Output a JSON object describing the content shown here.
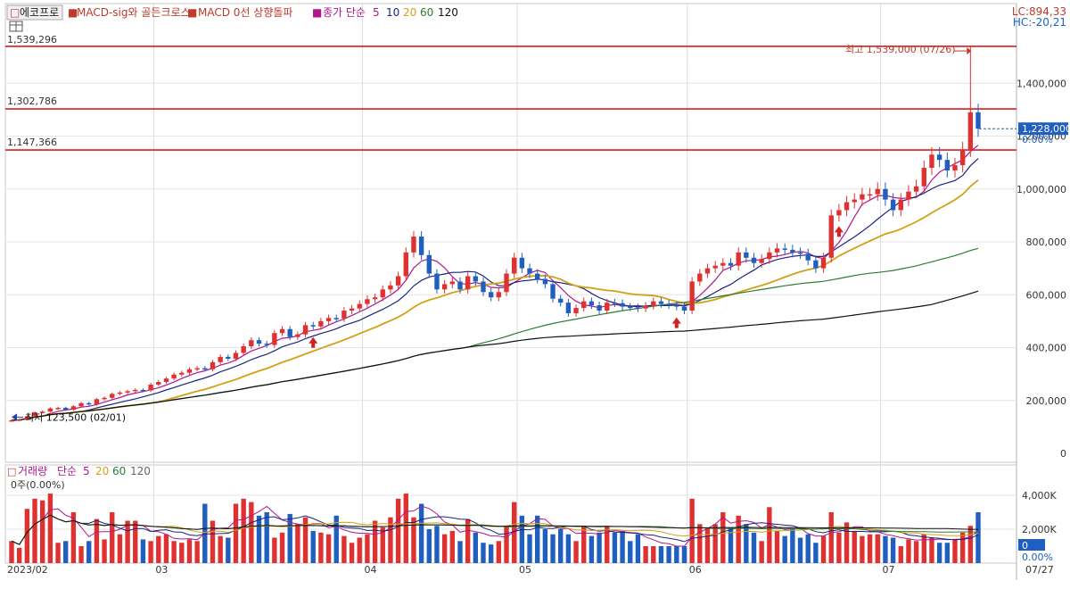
{
  "header": {
    "stock_name": "에코프로",
    "indicators": [
      {
        "label": "MACD-sig와 골든크로스",
        "color": "#c0392b"
      },
      {
        "label": "MACD 0선 상향돌파",
        "color": "#c0392b"
      }
    ],
    "ma_label": "종가 단순",
    "ma_periods": [
      {
        "label": "5",
        "color": "#b0178c"
      },
      {
        "label": "10",
        "color": "#1a237e"
      },
      {
        "label": "20",
        "color": "#d4a017"
      },
      {
        "label": "60",
        "color": "#2e7d32"
      },
      {
        "label": "120",
        "color": "#111111"
      }
    ]
  },
  "readouts": {
    "lc": "LC:894,33",
    "hc": "HC:-20,21"
  },
  "price_levels": [
    {
      "label": "1,539,296",
      "value": 1539296
    },
    {
      "label": "1,302,786",
      "value": 1302786
    },
    {
      "label": "1,147,366",
      "value": 1147366
    }
  ],
  "annotations": {
    "high": "최고 1,539,000 (07/26)",
    "low": "최저 123,500 (02/01)"
  },
  "current_price": {
    "label": "1,228,000",
    "value": 1228000,
    "pct": "0.00%"
  },
  "volume_header": {
    "label": "거래량",
    "ma_label": "단순",
    "zero_label": "0주(0.00%)",
    "current_label": "0",
    "pct": "0.00%"
  },
  "footer": {
    "start_label": "2023/02",
    "end_date": "07/27"
  },
  "chart_data": [
    {
      "type": "candlestick",
      "title": "",
      "ylim": [
        0,
        1600000
      ],
      "yticks": [
        0,
        200000,
        400000,
        600000,
        800000,
        1000000,
        1200000,
        1400000,
        1600000
      ],
      "ytick_labels": [
        "0",
        "200,000",
        "400,000",
        "600,000",
        "800,000",
        "1,000,000",
        "1,200,000",
        "1,400,000",
        "1,600,000"
      ],
      "x_month_labels": [
        "03",
        "04",
        "05",
        "06",
        "07"
      ],
      "x_month_starts": [
        "2023/03",
        "2023/04",
        "2023/05",
        "2023/06",
        "2023/07"
      ],
      "close": [
        125000,
        128000,
        140000,
        155000,
        158000,
        170000,
        172000,
        165000,
        178000,
        190000,
        185000,
        205000,
        210000,
        225000,
        230000,
        235000,
        240000,
        238000,
        260000,
        270000,
        283000,
        298000,
        305000,
        318000,
        322000,
        318000,
        345000,
        365000,
        358000,
        380000,
        405000,
        428000,
        415000,
        410000,
        455000,
        470000,
        440000,
        450000,
        485000,
        480000,
        500000,
        512000,
        510000,
        540000,
        548000,
        565000,
        583000,
        590000,
        620000,
        635000,
        670000,
        760000,
        820000,
        750000,
        680000,
        620000,
        640000,
        650000,
        620000,
        670000,
        650000,
        610000,
        590000,
        610000,
        680000,
        740000,
        700000,
        680000,
        660000,
        640000,
        585000,
        570000,
        530000,
        550000,
        575000,
        560000,
        540000,
        570000,
        568000,
        555000,
        552000,
        548000,
        558000,
        575000,
        565000,
        560000,
        555000,
        540000,
        650000,
        680000,
        700000,
        710000,
        720000,
        710000,
        760000,
        740000,
        720000,
        735000,
        760000,
        775000,
        770000,
        760000,
        755000,
        730000,
        700000,
        740000,
        900000,
        920000,
        950000,
        960000,
        980000,
        980000,
        1000000,
        960000,
        920000,
        960000,
        990000,
        1010000,
        1080000,
        1130000,
        1110000,
        1070000,
        1090000,
        1150000,
        1290000,
        1228000
      ],
      "volume_k": [
        1300,
        900,
        3200,
        3800,
        3700,
        4100,
        1200,
        1300,
        3000,
        1000,
        1300,
        2600,
        1400,
        3000,
        1700,
        2500,
        2500,
        1400,
        1300,
        1600,
        1700,
        1300,
        1200,
        1400,
        1300,
        3500,
        2500,
        1600,
        1500,
        3500,
        3800,
        3600,
        2800,
        3000,
        1500,
        1800,
        2900,
        2300,
        2700,
        1900,
        1800,
        1700,
        2800,
        1600,
        1200,
        1500,
        1700,
        2500,
        2100,
        2700,
        3800,
        4100,
        2700,
        3500,
        2000,
        2200,
        1700,
        1900,
        1300,
        2600,
        1800,
        1200,
        1100,
        1300,
        2200,
        3600,
        2800,
        1700,
        2800,
        2000,
        1700,
        2000,
        1700,
        1300,
        2200,
        1600,
        1800,
        2200,
        1800,
        1900,
        1300,
        1700,
        1000,
        1000,
        1000,
        1000,
        1000,
        1000,
        3800,
        2300,
        2100,
        2300,
        3000,
        2100,
        2800,
        2300,
        1800,
        1300,
        3300,
        1900,
        1600,
        2000,
        1500,
        1700,
        1200,
        1600,
        3000,
        1800,
        2400,
        1900,
        1600,
        1700,
        1700,
        1600,
        1500,
        1000,
        1400,
        1300,
        1700,
        1500,
        1200,
        1200,
        1400,
        1800,
        2200,
        3000
      ],
      "ma_periods": [
        5,
        10,
        20,
        60,
        120
      ],
      "highlight_lines": [
        1539296,
        1302786,
        1147366
      ],
      "high": {
        "value": 1539000,
        "date": "07/26"
      },
      "low": {
        "value": 123500,
        "date": "02/01"
      }
    },
    {
      "type": "bar",
      "title": "거래량",
      "ylim": [
        0,
        5000
      ],
      "yticks": [
        0,
        2000,
        4000
      ],
      "ytick_labels": [
        "0",
        "2,000K",
        "4,000K"
      ]
    }
  ]
}
